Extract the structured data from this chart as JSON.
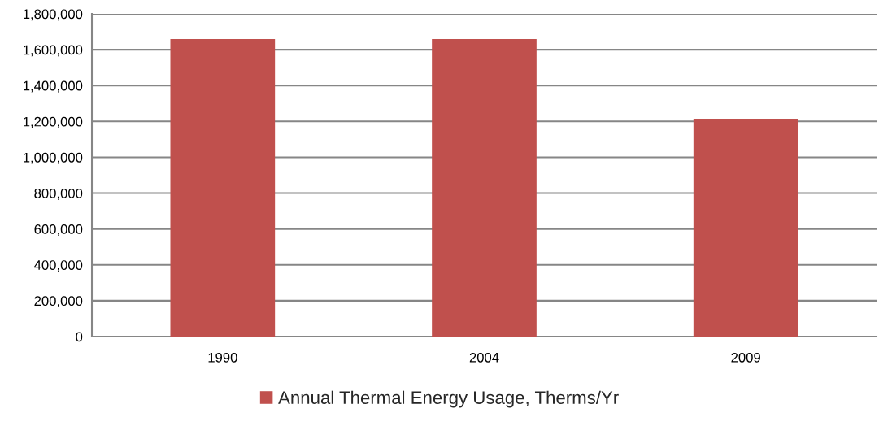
{
  "chart_data": {
    "type": "bar",
    "categories": [
      "1990",
      "2004",
      "2009"
    ],
    "series": [
      {
        "name": "Annual Thermal Energy Usage, Therms/Yr",
        "color": "#c0504d",
        "values": [
          1660000,
          1660000,
          1215000
        ]
      }
    ],
    "ylim": [
      0,
      1800000
    ],
    "yticks": [
      0,
      {
        "value": 200000,
        "label": "200,000"
      },
      {
        "value": 400000,
        "label": "400,000"
      },
      {
        "value": 600000,
        "label": "600,000"
      },
      {
        "value": 800000,
        "label": "800,000"
      },
      {
        "value": 1000000,
        "label": "1,000,000"
      },
      {
        "value": 1200000,
        "label": "1,200,000"
      },
      {
        "value": 1400000,
        "label": "1,400,000"
      },
      {
        "value": 1600000,
        "label": "1,600,000"
      },
      {
        "value": 1800000,
        "label": "1,800,000"
      }
    ],
    "grid": "y",
    "legend": "bottom"
  }
}
